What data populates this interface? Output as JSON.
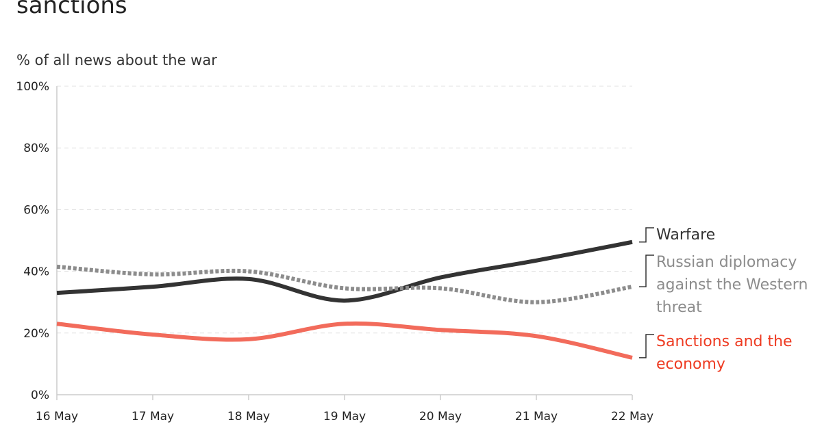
{
  "chart": {
    "title": "sanctions",
    "ylabel": "% of all news about the war"
  },
  "colors": {
    "warfare": "#333333",
    "diplomacy": "#8c8c8c",
    "sanctions": "#f26b5b",
    "sanctions_label": "#ee3b22",
    "grid": "#e0e0e0",
    "axis": "#cccccc"
  },
  "chart_data": {
    "type": "line",
    "title": "sanctions",
    "xlabel": "",
    "ylabel": "% of all news about the war",
    "x": [
      "16 May",
      "17 May",
      "18 May",
      "19 May",
      "20 May",
      "21 May",
      "22 May"
    ],
    "y_ticks": [
      "0%",
      "20%",
      "40%",
      "60%",
      "80%",
      "100%"
    ],
    "ylim": [
      0,
      100
    ],
    "grid": true,
    "series": [
      {
        "name": "Warfare",
        "values": [
          33,
          35,
          37.5,
          30.5,
          38,
          43.5,
          49.5
        ],
        "style": "solid"
      },
      {
        "name": "Russian diplomacy against the Western threat",
        "label_lines": [
          "Russian diplomacy",
          "against the Western",
          "threat"
        ],
        "values": [
          41.5,
          39,
          40,
          34.5,
          34.5,
          30,
          35
        ],
        "style": "dotted"
      },
      {
        "name": "Sanctions and the economy",
        "label_lines": [
          "Sanctions and the",
          "economy"
        ],
        "values": [
          23,
          19.5,
          18,
          23,
          21,
          19,
          12
        ],
        "style": "solid"
      }
    ]
  }
}
